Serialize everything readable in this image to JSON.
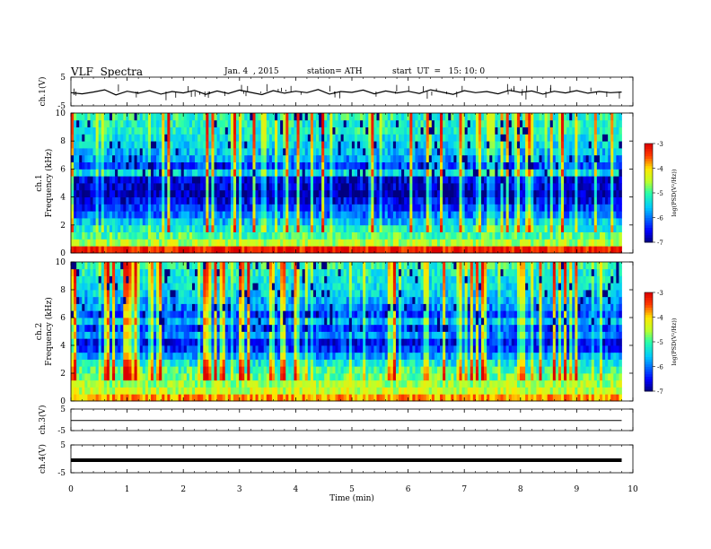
{
  "header": {
    "title": "VLF  Spectra",
    "date": "Jan. 4  , 2015",
    "station": "station= ATH",
    "start": "start  UT  =   15: 10: 0"
  },
  "chart_data": [
    {
      "type": "line",
      "name": "ch1-waveform",
      "ylabel": "ch.1(V)",
      "ylim": [
        -5,
        5
      ],
      "yticks": [
        "5",
        "-5"
      ],
      "x": [
        0,
        0.2,
        0.4,
        0.6,
        0.8,
        1.0,
        1.2,
        1.4,
        1.6,
        1.8,
        2.0,
        2.2,
        2.4,
        2.6,
        2.8,
        3.0,
        3.2,
        3.4,
        3.6,
        3.8,
        4.0,
        4.2,
        4.4,
        4.6,
        4.8,
        5.0,
        5.2,
        5.4,
        5.6,
        5.8,
        6.0,
        6.2,
        6.4,
        6.6,
        6.8,
        7.0,
        7.2,
        7.4,
        7.6,
        7.8,
        8.0,
        8.2,
        8.4,
        8.6,
        8.8,
        9.0,
        9.2,
        9.4,
        9.6,
        9.8
      ],
      "y": [
        -0.4,
        -0.8,
        -0.2,
        0.6,
        -1.2,
        0.1,
        -0.6,
        0.3,
        -0.9,
        0.0,
        -0.5,
        0.4,
        -1.0,
        0.2,
        -0.7,
        0.5,
        -0.3,
        -1.1,
        0.3,
        -0.6,
        0.1,
        -0.4,
        0.7,
        -0.9,
        0.0,
        -0.3,
        0.5,
        -0.8,
        0.2,
        -0.5,
        0.1,
        -0.7,
        0.6,
        -0.2,
        -1.0,
        0.3,
        -0.4,
        0.0,
        -0.8,
        0.4,
        -0.3,
        0.2,
        -0.9,
        0.1,
        -0.5,
        0.3,
        -0.6,
        0.0,
        -0.4,
        -0.2
      ]
    },
    {
      "type": "heatmap",
      "name": "ch1-spectrogram",
      "ylabel": "ch.1\nFrequency (kHz)",
      "ylim": [
        0,
        10
      ],
      "yticks": [
        "0",
        "2",
        "4",
        "6",
        "8",
        "10"
      ],
      "colorbar": {
        "label": "log(PSD(V²/Hz))",
        "ticks": [
          "-3",
          "-4",
          "-5",
          "-6",
          "-7"
        ],
        "range": [
          -7,
          -3
        ]
      },
      "freq_kHz": [
        0.25,
        0.75,
        1.25,
        1.75,
        2.25,
        2.75,
        3.25,
        3.75,
        4.25,
        4.75,
        5.25,
        5.75,
        6.25,
        6.75,
        7.25,
        7.75,
        8.25,
        8.75,
        9.25,
        9.75
      ],
      "mean_log_psd": [
        -3.2,
        -4.5,
        -4.9,
        -5.2,
        -5.6,
        -6.0,
        -6.3,
        -6.6,
        -6.9,
        -6.7,
        -6.6,
        -5.4,
        -6.2,
        -5.8,
        -5.6,
        -5.4,
        -5.3,
        -5.2,
        -5.2,
        -5.1
      ]
    },
    {
      "type": "heatmap",
      "name": "ch2-spectrogram",
      "ylabel": "ch.2\nFrequency (kHz)",
      "ylim": [
        0,
        10
      ],
      "yticks": [
        "0",
        "2",
        "4",
        "6",
        "8",
        "10"
      ],
      "colorbar": {
        "label": "log(PSD(V²/Hz))",
        "ticks": [
          "-3",
          "-4",
          "-5",
          "-6",
          "-7"
        ],
        "range": [
          -7,
          -3
        ]
      },
      "freq_kHz": [
        0.25,
        0.75,
        1.25,
        1.75,
        2.25,
        2.75,
        3.25,
        3.75,
        4.25,
        4.75,
        5.25,
        5.75,
        6.25,
        6.75,
        7.25,
        7.75,
        8.25,
        8.75,
        9.25,
        9.75
      ],
      "mean_log_psd": [
        -3.8,
        -4.4,
        -4.6,
        -4.8,
        -5.0,
        -5.3,
        -5.8,
        -6.3,
        -6.5,
        -5.9,
        -6.2,
        -5.6,
        -6.2,
        -5.9,
        -5.7,
        -5.5,
        -5.4,
        -5.3,
        -5.2,
        -5.1
      ]
    },
    {
      "type": "line",
      "name": "ch3-waveform",
      "ylabel": "ch.3(V)",
      "ylim": [
        -5,
        5
      ],
      "yticks": [
        "5",
        "-5"
      ],
      "x": [
        0,
        1,
        2,
        3,
        4,
        5,
        6,
        7,
        8,
        9,
        9.8
      ],
      "y": [
        -0.3,
        -0.3,
        -0.3,
        -0.3,
        -0.3,
        -0.3,
        -0.3,
        -0.3,
        -0.3,
        -0.3,
        -0.3
      ]
    },
    {
      "type": "line",
      "name": "ch4-waveform",
      "ylabel": "ch.4(V)",
      "ylim": [
        -5,
        5
      ],
      "yticks": [
        "5",
        "-5"
      ],
      "x": [
        0,
        1,
        2,
        3,
        4,
        5,
        6,
        7,
        8,
        9,
        9.8
      ],
      "y": [
        -0.5,
        -0.5,
        -0.5,
        -0.5,
        -0.5,
        -0.5,
        -0.5,
        -0.5,
        -0.5,
        -0.5,
        -0.5
      ]
    }
  ],
  "xaxis": {
    "label": "Time  (min)",
    "xlim": [
      0,
      10
    ],
    "ticks": [
      "0",
      "1",
      "2",
      "3",
      "4",
      "5",
      "6",
      "7",
      "8",
      "9",
      "10"
    ],
    "data_end": 9.8
  }
}
